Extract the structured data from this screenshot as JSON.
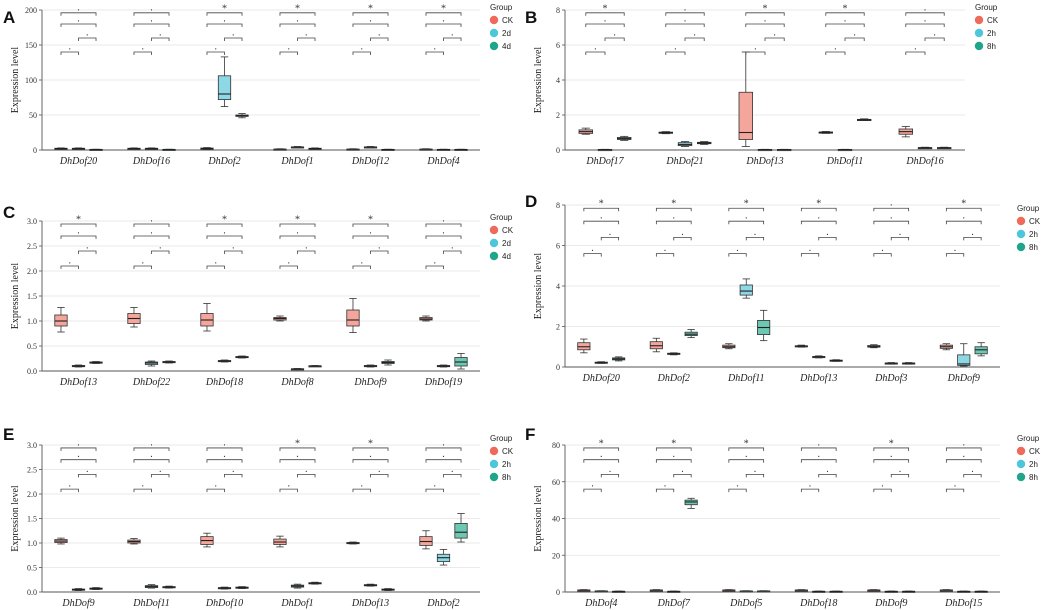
{
  "figure": {
    "y_axis_label": "Expression level",
    "legend_title": "Group",
    "star": "*",
    "dot": "."
  },
  "colors": {
    "g1": "#f4a59c",
    "g2": "#8ed8e6",
    "g3": "#6cc7b3",
    "leg1": "#ee6a5a",
    "leg2": "#4dc6dc",
    "leg3": "#1fa58a"
  },
  "chart_data": [
    {
      "panel": "A",
      "type": "box",
      "ylim": [
        0,
        200
      ],
      "yticks": [
        0,
        50,
        100,
        150,
        200
      ],
      "groups": [
        "CK",
        "2d",
        "4d"
      ],
      "categories": [
        "DhDof20",
        "DhDof16",
        "DhDof2",
        "DhDof1",
        "DhDof12",
        "DhDof4"
      ],
      "significance": [
        "dot",
        "dot",
        "star",
        "star",
        "star",
        "star"
      ],
      "boxes": [
        [
          [
            1,
            1.5,
            2,
            2.5,
            3
          ],
          [
            1,
            1.5,
            2,
            2.5,
            3
          ],
          [
            0.3,
            0.5,
            0.7,
            0.9,
            1.1
          ]
        ],
        [
          [
            1,
            1.5,
            2,
            2.5,
            3
          ],
          [
            1,
            1.5,
            2,
            2.5,
            3
          ],
          [
            0.3,
            0.5,
            0.7,
            0.9,
            1.1
          ]
        ],
        [
          [
            0.5,
            1.2,
            2,
            2.8,
            3.5
          ],
          [
            62,
            72,
            80,
            106,
            133
          ],
          [
            46,
            48,
            49,
            50,
            52
          ]
        ],
        [
          [
            0.3,
            0.6,
            1,
            1.3,
            1.8
          ],
          [
            3,
            3.5,
            4,
            4.5,
            5
          ],
          [
            1,
            1.5,
            2,
            2.5,
            3
          ]
        ],
        [
          [
            0.5,
            0.8,
            1,
            1.3,
            1.8
          ],
          [
            3,
            3.6,
            4,
            4.5,
            5
          ],
          [
            0.3,
            0.5,
            0.7,
            0.9,
            1.1
          ]
        ],
        [
          [
            0.5,
            0.8,
            1,
            1.3,
            1.8
          ],
          [
            0.3,
            0.5,
            0.7,
            0.9,
            1.1
          ],
          [
            0.3,
            0.5,
            0.7,
            0.9,
            1.1
          ]
        ]
      ]
    },
    {
      "panel": "B",
      "type": "box",
      "ylim": [
        0,
        8
      ],
      "yticks": [
        0,
        2,
        4,
        6,
        8
      ],
      "groups": [
        "CK",
        "2h",
        "8h"
      ],
      "categories": [
        "DhDof17",
        "DhDof21",
        "DhDof13",
        "DhDof11",
        "DhDof16"
      ],
      "significance": [
        "star",
        "dot",
        "star",
        "star",
        "dot"
      ],
      "boxes": [
        [
          [
            0.9,
            0.95,
            1.05,
            1.15,
            1.25
          ],
          [
            0,
            0.01,
            0.02,
            0.03,
            0.04
          ],
          [
            0.55,
            0.6,
            0.65,
            0.72,
            0.78
          ]
        ],
        [
          [
            0.93,
            0.97,
            1,
            1.02,
            1.05
          ],
          [
            0.2,
            0.25,
            0.32,
            0.42,
            0.48
          ],
          [
            0.32,
            0.36,
            0.4,
            0.44,
            0.48
          ]
        ],
        [
          [
            0.2,
            0.6,
            1,
            3.3,
            5.6
          ],
          [
            0,
            0.01,
            0.02,
            0.03,
            0.04
          ],
          [
            0,
            0.01,
            0.02,
            0.03,
            0.04
          ]
        ],
        [
          [
            0.95,
            0.98,
            1,
            1.03,
            1.06
          ],
          [
            0,
            0.01,
            0.02,
            0.03,
            0.04
          ],
          [
            1.68,
            1.7,
            1.72,
            1.75,
            1.78
          ]
        ],
        [
          [
            0.75,
            0.9,
            1.05,
            1.2,
            1.35
          ],
          [
            0.08,
            0.1,
            0.12,
            0.14,
            0.16
          ],
          [
            0.08,
            0.1,
            0.12,
            0.14,
            0.16
          ]
        ]
      ]
    },
    {
      "panel": "C",
      "type": "box",
      "ylim": [
        0,
        3
      ],
      "yticks": [
        0.0,
        0.5,
        1.0,
        1.5,
        2.0,
        2.5,
        3.0
      ],
      "groups": [
        "CK",
        "2d",
        "4d"
      ],
      "categories": [
        "DhDof13",
        "DhDof22",
        "DhDof18",
        "DhDof8",
        "DhDof9",
        "DhDof19"
      ],
      "significance": [
        "star",
        "dot",
        "star",
        "star",
        "star",
        "dot"
      ],
      "boxes": [
        [
          [
            0.78,
            0.9,
            1.0,
            1.12,
            1.27
          ],
          [
            0.08,
            0.09,
            0.1,
            0.11,
            0.12
          ],
          [
            0.15,
            0.16,
            0.17,
            0.18,
            0.19
          ]
        ],
        [
          [
            0.88,
            0.95,
            1.05,
            1.15,
            1.27
          ],
          [
            0.1,
            0.13,
            0.16,
            0.18,
            0.2
          ],
          [
            0.16,
            0.17,
            0.18,
            0.19,
            0.2
          ]
        ],
        [
          [
            0.8,
            0.9,
            1.02,
            1.15,
            1.35
          ],
          [
            0.18,
            0.19,
            0.2,
            0.21,
            0.22
          ],
          [
            0.26,
            0.27,
            0.28,
            0.29,
            0.3
          ]
        ],
        [
          [
            1.0,
            1.02,
            1.05,
            1.07,
            1.1
          ],
          [
            0.03,
            0.035,
            0.04,
            0.045,
            0.05
          ],
          [
            0.09,
            0.095,
            0.1,
            0.105,
            0.11
          ]
        ],
        [
          [
            0.77,
            0.9,
            1.02,
            1.22,
            1.45
          ],
          [
            0.08,
            0.09,
            0.1,
            0.11,
            0.12
          ],
          [
            0.12,
            0.15,
            0.17,
            0.19,
            0.22
          ]
        ],
        [
          [
            1.0,
            1.02,
            1.04,
            1.07,
            1.1
          ],
          [
            0.08,
            0.09,
            0.1,
            0.11,
            0.12
          ],
          [
            0.04,
            0.1,
            0.18,
            0.27,
            0.35
          ]
        ]
      ]
    },
    {
      "panel": "D",
      "type": "box",
      "ylim": [
        0,
        8
      ],
      "yticks": [
        0,
        2,
        4,
        6,
        8
      ],
      "groups": [
        "CK",
        "2h",
        "8h"
      ],
      "categories": [
        "DhDof20",
        "DhDof2",
        "DhDof11",
        "DhDof13",
        "DhDof3",
        "DhDof9"
      ],
      "significance": [
        "star",
        "star",
        "star",
        "star",
        "dot",
        "star"
      ],
      "boxes": [
        [
          [
            0.7,
            0.85,
            1.0,
            1.2,
            1.38
          ],
          [
            0.18,
            0.2,
            0.22,
            0.24,
            0.26
          ],
          [
            0.3,
            0.35,
            0.4,
            0.45,
            0.5
          ]
        ],
        [
          [
            0.75,
            0.9,
            1.05,
            1.25,
            1.42
          ],
          [
            0.6,
            0.62,
            0.65,
            0.68,
            0.7
          ],
          [
            1.45,
            1.55,
            1.62,
            1.72,
            1.85
          ]
        ],
        [
          [
            0.9,
            0.95,
            1.0,
            1.08,
            1.15
          ],
          [
            3.4,
            3.55,
            3.75,
            4.05,
            4.35
          ],
          [
            1.3,
            1.6,
            1.95,
            2.3,
            2.8
          ]
        ],
        [
          [
            0.98,
            1.0,
            1.03,
            1.05,
            1.08
          ],
          [
            0.45,
            0.47,
            0.5,
            0.52,
            0.55
          ],
          [
            0.28,
            0.3,
            0.32,
            0.34,
            0.36
          ]
        ],
        [
          [
            0.95,
            0.98,
            1.02,
            1.06,
            1.1
          ],
          [
            0.14,
            0.16,
            0.18,
            0.2,
            0.22
          ],
          [
            0.14,
            0.16,
            0.18,
            0.2,
            0.22
          ]
        ],
        [
          [
            0.85,
            0.92,
            1.0,
            1.08,
            1.15
          ],
          [
            0.05,
            0.08,
            0.15,
            0.6,
            1.15
          ],
          [
            0.55,
            0.65,
            0.85,
            1.0,
            1.2
          ]
        ]
      ]
    },
    {
      "panel": "E",
      "type": "box",
      "ylim": [
        0,
        3
      ],
      "yticks": [
        0.0,
        0.5,
        1.0,
        1.5,
        2.0,
        2.5,
        3.0
      ],
      "groups": [
        "CK",
        "2h",
        "8h"
      ],
      "categories": [
        "DhDof9",
        "DhDof11",
        "DhDof10",
        "DhDof1",
        "DhDof13",
        "DhDof2"
      ],
      "significance": [
        "dot",
        "dot",
        "dot",
        "star",
        "star",
        "dot"
      ],
      "boxes": [
        [
          [
            0.98,
            1.01,
            1.04,
            1.07,
            1.1
          ],
          [
            0.03,
            0.04,
            0.05,
            0.06,
            0.07
          ],
          [
            0.05,
            0.06,
            0.07,
            0.08,
            0.09
          ]
        ],
        [
          [
            0.98,
            1.0,
            1.03,
            1.06,
            1.09
          ],
          [
            0.08,
            0.09,
            0.11,
            0.13,
            0.15
          ],
          [
            0.08,
            0.09,
            0.1,
            0.11,
            0.12
          ]
        ],
        [
          [
            0.92,
            0.97,
            1.05,
            1.13,
            1.2
          ],
          [
            0.06,
            0.07,
            0.08,
            0.09,
            0.1
          ],
          [
            0.07,
            0.08,
            0.09,
            0.1,
            0.11
          ]
        ],
        [
          [
            0.92,
            0.97,
            1.02,
            1.08,
            1.14
          ],
          [
            0.08,
            0.1,
            0.12,
            0.14,
            0.16
          ],
          [
            0.16,
            0.17,
            0.18,
            0.19,
            0.2
          ]
        ],
        [
          [
            0.98,
            0.99,
            1.0,
            1.01,
            1.02
          ],
          [
            0.12,
            0.13,
            0.14,
            0.15,
            0.16
          ],
          [
            0.03,
            0.04,
            0.05,
            0.06,
            0.07
          ]
        ],
        [
          [
            0.88,
            0.95,
            1.03,
            1.13,
            1.25
          ],
          [
            0.55,
            0.62,
            0.7,
            0.77,
            0.87
          ],
          [
            1.02,
            1.1,
            1.22,
            1.4,
            1.6
          ]
        ]
      ]
    },
    {
      "panel": "F",
      "type": "box",
      "ylim": [
        0,
        80
      ],
      "yticks": [
        0,
        20,
        40,
        60,
        80
      ],
      "groups": [
        "CK",
        "2h",
        "8h"
      ],
      "categories": [
        "DhDof4",
        "DhDof7",
        "DhDof5",
        "DhDof18",
        "DhDof9",
        "DhDof15"
      ],
      "significance": [
        "star",
        "star",
        "star",
        "dot",
        "star",
        "dot"
      ],
      "boxes": [
        [
          [
            0.7,
            0.9,
            1.0,
            1.1,
            1.3
          ],
          [
            0.3,
            0.4,
            0.5,
            0.6,
            0.7
          ],
          [
            0.1,
            0.2,
            0.3,
            0.4,
            0.5
          ]
        ],
        [
          [
            0.7,
            0.9,
            1.0,
            1.1,
            1.3
          ],
          [
            0.1,
            0.2,
            0.3,
            0.4,
            0.5
          ],
          [
            45.5,
            47.5,
            49,
            50,
            51
          ]
        ],
        [
          [
            0.7,
            0.9,
            1.0,
            1.1,
            1.3
          ],
          [
            0.3,
            0.4,
            0.5,
            0.6,
            0.7
          ],
          [
            0.3,
            0.4,
            0.5,
            0.6,
            0.7
          ]
        ],
        [
          [
            0.7,
            0.9,
            1.0,
            1.1,
            1.3
          ],
          [
            0.1,
            0.2,
            0.3,
            0.4,
            0.5
          ],
          [
            0.1,
            0.2,
            0.3,
            0.4,
            0.5
          ]
        ],
        [
          [
            0.7,
            0.9,
            1.0,
            1.1,
            1.3
          ],
          [
            0.1,
            0.2,
            0.3,
            0.4,
            0.5
          ],
          [
            0.1,
            0.2,
            0.3,
            0.4,
            0.5
          ]
        ],
        [
          [
            0.7,
            0.9,
            1.0,
            1.1,
            1.3
          ],
          [
            0.1,
            0.2,
            0.3,
            0.4,
            0.5
          ],
          [
            0.1,
            0.2,
            0.3,
            0.4,
            0.5
          ]
        ]
      ]
    }
  ]
}
